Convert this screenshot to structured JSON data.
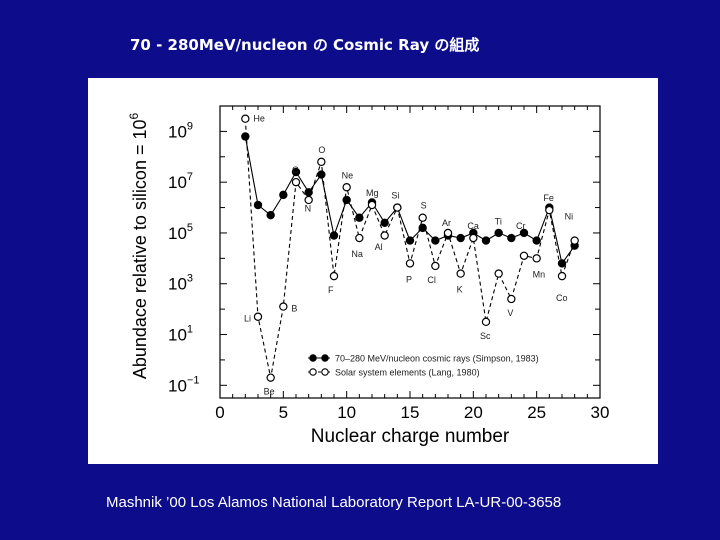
{
  "slide": {
    "title": "70 - 280MeV/nucleon の Cosmic Ray の組成",
    "caption": "Mashnik ’00 Los Alamos National Laboratory Report LA-UR-00-3658"
  },
  "colors": {
    "background": "#0d0d8c",
    "panel": "#ffffff",
    "ink": "#000000"
  },
  "chart_data": {
    "type": "line",
    "title": "",
    "xlabel": "Nuclear charge number",
    "ylabel": "Abundace relative to silicon = 10^6",
    "ylabel_main": "Abundace relative to silicon = 10",
    "ylabel_exp": "6",
    "xlim": [
      0,
      30
    ],
    "ylim_log10": [
      -1.5,
      10
    ],
    "y_scale": "log",
    "x_ticks": [
      0,
      5,
      10,
      15,
      20,
      25,
      30
    ],
    "y_ticks": [
      {
        "value": 9,
        "base": "10",
        "exp": "9"
      },
      {
        "value": 7,
        "base": "10",
        "exp": "7"
      },
      {
        "value": 5,
        "base": "10",
        "exp": "5"
      },
      {
        "value": 3,
        "base": "10",
        "exp": "3"
      },
      {
        "value": 1,
        "base": "10",
        "exp": "1"
      },
      {
        "value": -1,
        "base": "10",
        "exp": "−1"
      }
    ],
    "legend": {
      "position": "bottom-right",
      "entries": [
        "70–280 MeV/nucleon cosmic rays (Simpson, 1983)",
        "Solar system elements (Lang, 1980)"
      ]
    },
    "series": [
      {
        "name": "70–280 MeV/nucleon cosmic rays (Simpson, 1983)",
        "marker": "filled-circle",
        "line": "solid",
        "x": [
          2,
          3,
          4,
          5,
          6,
          7,
          8,
          9,
          10,
          11,
          12,
          13,
          14,
          15,
          16,
          17,
          18,
          19,
          20,
          21,
          22,
          23,
          24,
          25,
          26,
          27,
          28
        ],
        "log10_y": [
          8.8,
          6.1,
          5.7,
          6.5,
          7.4,
          6.6,
          7.3,
          4.9,
          6.3,
          5.6,
          6.2,
          5.4,
          6.0,
          4.7,
          5.2,
          4.7,
          4.9,
          4.8,
          5.0,
          4.7,
          5.0,
          4.8,
          5.0,
          4.7,
          6.0,
          3.8,
          4.5
        ]
      },
      {
        "name": "Solar system elements (Lang, 1980)",
        "marker": "open-circle",
        "line": "dashed",
        "x": [
          2,
          3,
          4,
          5,
          6,
          7,
          8,
          9,
          10,
          11,
          12,
          13,
          14,
          15,
          16,
          17,
          18,
          19,
          20,
          21,
          22,
          23,
          24,
          25,
          26,
          27,
          28
        ],
        "log10_y": [
          9.5,
          1.7,
          -0.7,
          2.1,
          7.0,
          6.3,
          7.8,
          3.3,
          6.8,
          4.8,
          6.1,
          4.9,
          6.0,
          3.8,
          5.6,
          3.7,
          5.0,
          3.4,
          4.8,
          1.5,
          3.4,
          2.4,
          4.1,
          4.0,
          5.9,
          3.3,
          4.7
        ]
      }
    ],
    "element_labels": [
      {
        "text": "He",
        "x": 2,
        "series": 1,
        "dx": 8,
        "dy": 0
      },
      {
        "text": "Li",
        "x": 3,
        "series": 1,
        "dx": -14,
        "dy": 2
      },
      {
        "text": "Be",
        "x": 4,
        "series": 1,
        "dx": -7,
        "dy": 14
      },
      {
        "text": "B",
        "x": 5,
        "series": 1,
        "dx": 8,
        "dy": 2
      },
      {
        "text": "C",
        "x": 6,
        "series": 1,
        "dx": -4,
        "dy": -12
      },
      {
        "text": "N",
        "x": 7,
        "series": 0,
        "dx": -4,
        "dy": 16
      },
      {
        "text": "O",
        "x": 8,
        "series": 1,
        "dx": -3,
        "dy": -12
      },
      {
        "text": "F",
        "x": 9,
        "series": 1,
        "dx": -6,
        "dy": 14
      },
      {
        "text": "Ne",
        "x": 10,
        "series": 1,
        "dx": -5,
        "dy": -12
      },
      {
        "text": "Na",
        "x": 11,
        "series": 1,
        "dx": -8,
        "dy": 16
      },
      {
        "text": "Mg",
        "x": 12,
        "series": 1,
        "dx": -6,
        "dy": -12
      },
      {
        "text": "Al",
        "x": 13,
        "series": 0,
        "dx": -10,
        "dy": 24
      },
      {
        "text": "Si",
        "x": 14,
        "series": 1,
        "dx": -6,
        "dy": -12
      },
      {
        "text": "S",
        "x": 16,
        "series": 1,
        "dx": -2,
        "dy": -12
      },
      {
        "text": "P",
        "x": 15,
        "series": 1,
        "dx": -4,
        "dy": 16
      },
      {
        "text": "Cl",
        "x": 17,
        "series": 1,
        "dx": -8,
        "dy": 14
      },
      {
        "text": "Ar",
        "x": 18,
        "series": 1,
        "dx": -6,
        "dy": -10
      },
      {
        "text": "K",
        "x": 19,
        "series": 1,
        "dx": -4,
        "dy": 16
      },
      {
        "text": "Ca",
        "x": 20,
        "series": 1,
        "dx": -6,
        "dy": -12
      },
      {
        "text": "Sc",
        "x": 21,
        "series": 1,
        "dx": -6,
        "dy": 14
      },
      {
        "text": "Ti",
        "x": 22,
        "series": 1,
        "dx": -4,
        "dy": -52
      },
      {
        "text": "V",
        "x": 23,
        "series": 1,
        "dx": -4,
        "dy": 14
      },
      {
        "text": "Cr",
        "x": 24,
        "series": 1,
        "dx": -8,
        "dy": -30
      },
      {
        "text": "Mn",
        "x": 25,
        "series": 1,
        "dx": -4,
        "dy": 16
      },
      {
        "text": "Fe",
        "x": 26,
        "series": 1,
        "dx": -6,
        "dy": -12
      },
      {
        "text": "Co",
        "x": 27,
        "series": 1,
        "dx": -6,
        "dy": 22
      },
      {
        "text": "Ni",
        "x": 28,
        "series": 1,
        "dx": -10,
        "dy": -24
      }
    ]
  }
}
